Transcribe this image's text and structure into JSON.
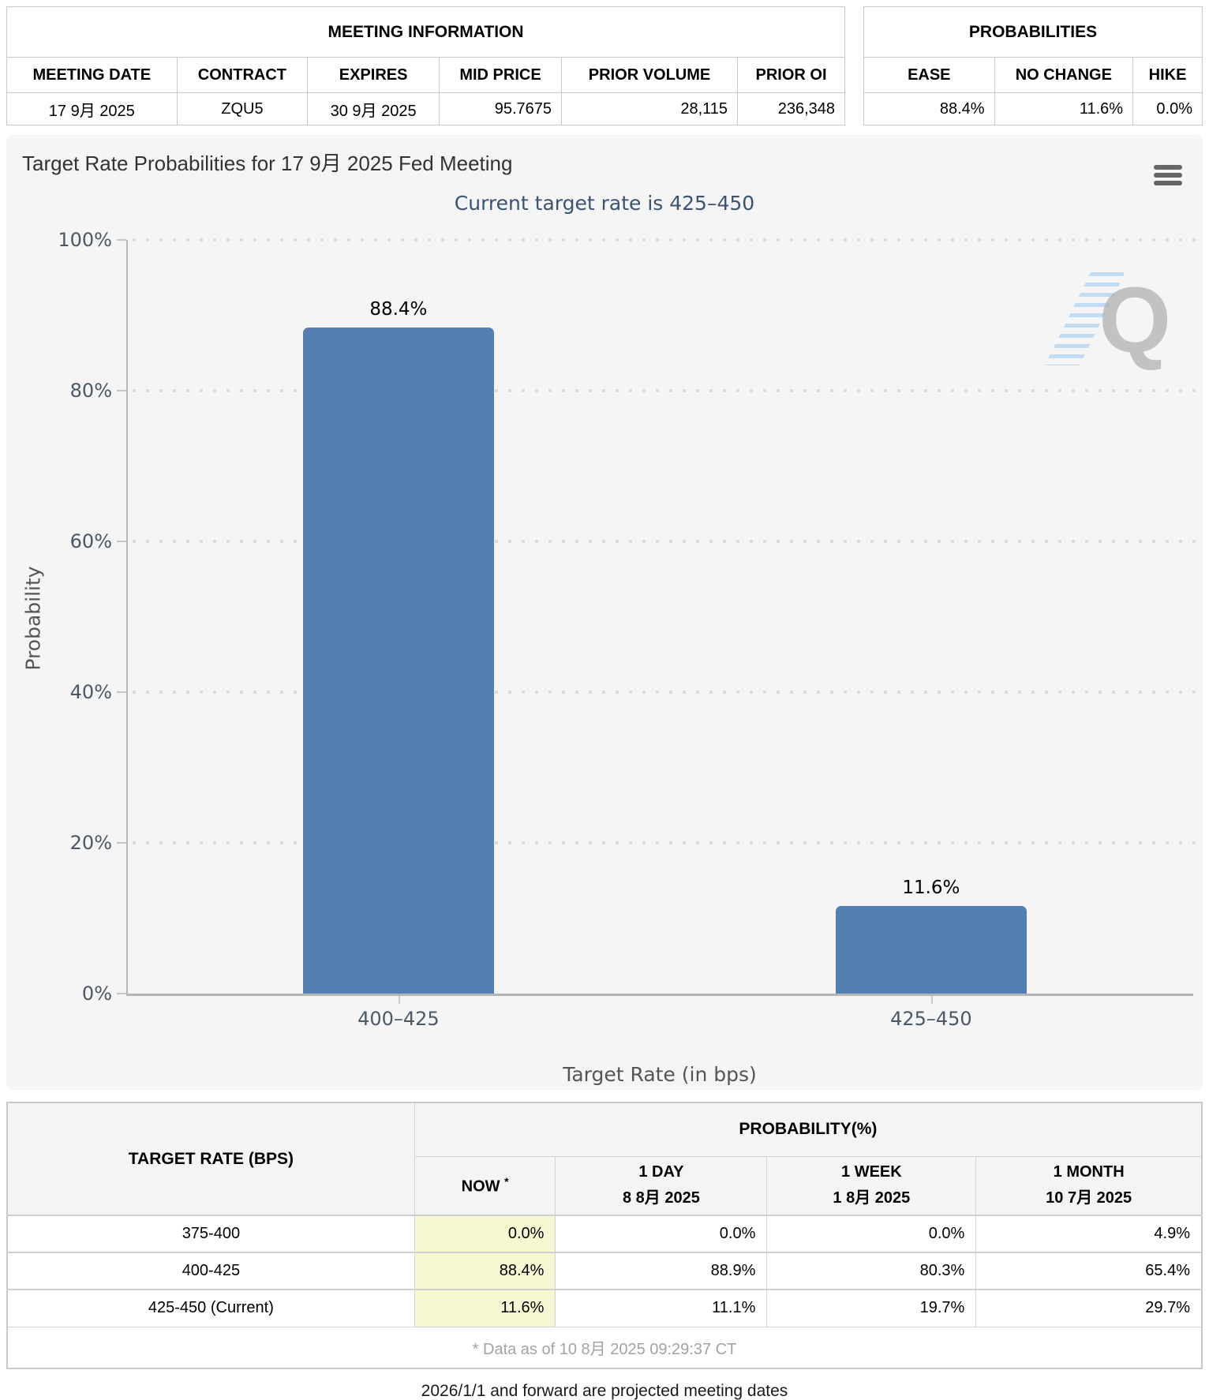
{
  "meeting_info": {
    "title": "MEETING INFORMATION",
    "headers": [
      "MEETING DATE",
      "CONTRACT",
      "EXPIRES",
      "MID PRICE",
      "PRIOR VOLUME",
      "PRIOR OI"
    ],
    "values": [
      "17 9月 2025",
      "ZQU5",
      "30 9月 2025",
      "95.7675",
      "28,115",
      "236,348"
    ]
  },
  "probabilities_summary": {
    "title": "PROBABILITIES",
    "headers": [
      "EASE",
      "NO CHANGE",
      "HIKE"
    ],
    "values": [
      "88.4%",
      "11.6%",
      "0.0%"
    ]
  },
  "chart_data": {
    "type": "bar",
    "title": "Target Rate Probabilities for 17 9月 2025 Fed Meeting",
    "subtitle": "Current target rate is 425–450",
    "categories": [
      "400–425",
      "425–450"
    ],
    "values": [
      88.4,
      11.6
    ],
    "value_labels": [
      "88.4%",
      "11.6%"
    ],
    "xlabel": "Target Rate (in bps)",
    "ylabel": "Probability",
    "ylim": [
      0,
      100
    ],
    "yticks": [
      "100%",
      "80%",
      "60%",
      "40%",
      "20%",
      "0%"
    ],
    "grid": "dotted-horizontal",
    "legend": "none",
    "bar_color": "#537fb3"
  },
  "chart_ui": {
    "menu_icon": "hamburger-icon",
    "watermark_letter": "Q"
  },
  "colors": {
    "bar": "#537fb3",
    "subtitle_text": "#3a5373",
    "now_column_highlight": "#f7f7d2",
    "chart_background": "#f5f5f5"
  },
  "history": {
    "rate_header": "TARGET RATE (BPS)",
    "group_header": "PROBABILITY(%)",
    "now_header": "NOW",
    "now_asterisk": "*",
    "cols": [
      {
        "label": "1 DAY",
        "date": "8 8月 2025"
      },
      {
        "label": "1 WEEK",
        "date": "1 8月 2025"
      },
      {
        "label": "1 MONTH",
        "date": "10 7月 2025"
      }
    ],
    "rows": [
      {
        "rate": "375-400",
        "now": "0.0%",
        "day": "0.0%",
        "week": "0.0%",
        "month": "4.9%"
      },
      {
        "rate": "400-425",
        "now": "88.4%",
        "day": "88.9%",
        "week": "80.3%",
        "month": "65.4%"
      },
      {
        "rate": "425-450 (Current)",
        "now": "11.6%",
        "day": "11.1%",
        "week": "19.7%",
        "month": "29.7%"
      }
    ],
    "footnote": "* Data as of 10 8月 2025 09:29:37 CT"
  },
  "note": "2026/1/1 and forward are projected meeting dates"
}
